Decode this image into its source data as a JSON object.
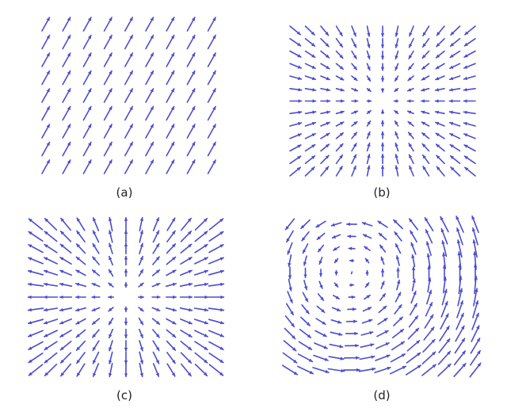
{
  "colors": {
    "arrow": "#4b4bd1",
    "background": "#ffffff",
    "label": "#222222"
  },
  "panels": [
    {
      "id": "a",
      "label": "(a)",
      "field": "uniform"
    },
    {
      "id": "b",
      "label": "(b)",
      "field": "sink"
    },
    {
      "id": "c",
      "label": "(c)",
      "field": "source"
    },
    {
      "id": "d",
      "label": "(d)",
      "field": "vortex"
    }
  ]
}
